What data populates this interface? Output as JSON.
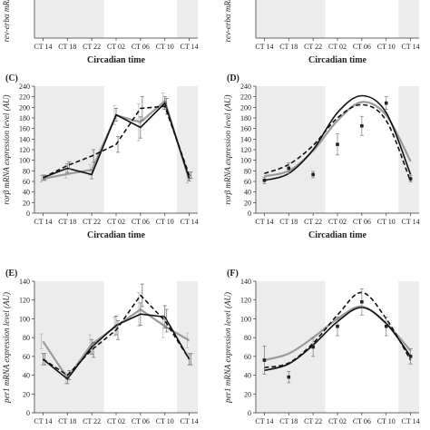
{
  "x_categories": [
    "CT 14",
    "CT 18",
    "CT 22",
    "CT 02",
    "CT 06",
    "CT 10",
    "CT 14"
  ],
  "colors": {
    "observed": "#111111",
    "replicate": "#9a9a9a",
    "fit": "#111111",
    "shade": "#ececec"
  },
  "chart_data": [
    {
      "id": "top-left",
      "type": "line",
      "panel_label": "",
      "ylabel": "rev-erbα mRNA",
      "xlabel": "Circadian time",
      "categories": [
        "CT 14",
        "CT 18",
        "CT 22",
        "CT 02",
        "CT 06",
        "CT 10",
        "CT 14"
      ],
      "series": [],
      "ylim": null,
      "yticks": []
    },
    {
      "id": "top-right",
      "type": "line",
      "panel_label": "",
      "ylabel": "rev-erbα mRNA",
      "xlabel": "Circadian time",
      "categories": [
        "CT 14",
        "CT 18",
        "CT 22",
        "CT 02",
        "CT 06",
        "CT 10",
        "CT 14"
      ],
      "series": [],
      "ylim": null,
      "yticks": []
    },
    {
      "id": "C",
      "type": "line",
      "panel_label": "(C)",
      "ylabel": "rorβ mRNA expression level (AU)",
      "xlabel": "Circadian time",
      "categories": [
        "CT 14",
        "CT 18",
        "CT 22",
        "CT 02",
        "CT 06",
        "CT 10",
        "CT 14"
      ],
      "ylim": [
        0,
        240
      ],
      "yticks": [
        0,
        20,
        40,
        60,
        80,
        100,
        120,
        140,
        160,
        180,
        200,
        220,
        240
      ],
      "series": [
        {
          "style": "gray-solid",
          "values": [
            65,
            74,
            82,
            185,
            172,
            212,
            63
          ],
          "errors": [
            6,
            8,
            10,
            18,
            35,
            15,
            6
          ],
          "markers": false
        },
        {
          "style": "black-solid",
          "values": [
            67,
            85,
            73,
            186,
            162,
            208,
            66
          ],
          "errors": [
            5,
            8,
            8,
            12,
            20,
            12,
            5
          ],
          "markers": false
        },
        {
          "style": "black-dashed",
          "values": [
            67,
            90,
            108,
            130,
            198,
            202,
            72
          ],
          "errors": [
            5,
            7,
            12,
            15,
            22,
            15,
            6
          ],
          "markers": false
        }
      ]
    },
    {
      "id": "D",
      "type": "line",
      "panel_label": "(D)",
      "ylabel": "rorβ mRNA expression level (AU)",
      "xlabel": "Circadian time",
      "categories": [
        "CT 14",
        "CT 18",
        "CT 22",
        "CT 02",
        "CT 06",
        "CT 10",
        "CT 14"
      ],
      "ylim": [
        0,
        240
      ],
      "yticks": [
        0,
        20,
        40,
        60,
        80,
        100,
        120,
        140,
        160,
        180,
        200,
        220,
        240
      ],
      "series": [
        {
          "style": "gray-solid",
          "values": [
            70,
            80,
            118,
            175,
            210,
            185,
            98
          ],
          "errors": [],
          "markers": false
        },
        {
          "style": "black-solid",
          "values": [
            62,
            75,
            120,
            190,
            222,
            190,
            73
          ],
          "errors": [],
          "markers": false
        },
        {
          "style": "black-dashed",
          "values": [
            75,
            92,
            128,
            180,
            205,
            175,
            60
          ],
          "errors": [],
          "markers": false
        },
        {
          "style": "points",
          "values": [
            62,
            85,
            73,
            130,
            165,
            208,
            65
          ],
          "errors": [
            6,
            10,
            6,
            20,
            18,
            12,
            6
          ],
          "markers": true
        }
      ]
    },
    {
      "id": "E",
      "type": "line",
      "panel_label": "(E)",
      "ylabel": "per1 mRNA expression level (AU)",
      "xlabel": "",
      "categories": [
        "CT 14",
        "CT 18",
        "CT 22",
        "CT 02",
        "CT 06",
        "CT 10",
        "CT 14"
      ],
      "ylim": [
        0,
        140
      ],
      "yticks": [
        0,
        20,
        40,
        60,
        80,
        100,
        120,
        140
      ],
      "series": [
        {
          "style": "gray-solid",
          "values": [
            76,
            37,
            73,
            92,
            110,
            92,
            77
          ],
          "errors": [
            8,
            6,
            10,
            10,
            18,
            12,
            8
          ],
          "markers": false
        },
        {
          "style": "black-solid",
          "values": [
            57,
            36,
            70,
            93,
            105,
            102,
            57
          ],
          "errors": [
            6,
            5,
            8,
            10,
            12,
            12,
            6
          ],
          "markers": false
        },
        {
          "style": "black-dashed",
          "values": [
            57,
            40,
            67,
            88,
            125,
            98,
            57
          ],
          "errors": [
            6,
            5,
            8,
            10,
            12,
            12,
            6
          ],
          "markers": false
        }
      ]
    },
    {
      "id": "F",
      "type": "line",
      "panel_label": "(F)",
      "ylabel": "per1 mRNA expression level (AU)",
      "xlabel": "",
      "categories": [
        "CT 14",
        "CT 18",
        "CT 22",
        "CT 02",
        "CT 06",
        "CT 10",
        "CT 14"
      ],
      "ylim": [
        0,
        140
      ],
      "yticks": [
        0,
        20,
        40,
        60,
        80,
        100,
        120,
        140
      ],
      "series": [
        {
          "style": "gray-solid",
          "values": [
            56,
            63,
            80,
            100,
            113,
            95,
            66
          ],
          "errors": [],
          "markers": false
        },
        {
          "style": "black-solid",
          "values": [
            45,
            52,
            72,
            97,
            112,
            95,
            60
          ],
          "errors": [],
          "markers": false
        },
        {
          "style": "black-dashed",
          "values": [
            48,
            53,
            74,
            104,
            128,
            100,
            56
          ],
          "errors": [],
          "markers": false
        },
        {
          "style": "points",
          "values": [
            56,
            38,
            70,
            92,
            118,
            92,
            60
          ],
          "errors": [
            15,
            6,
            10,
            10,
            14,
            10,
            8
          ],
          "markers": true
        }
      ]
    }
  ]
}
